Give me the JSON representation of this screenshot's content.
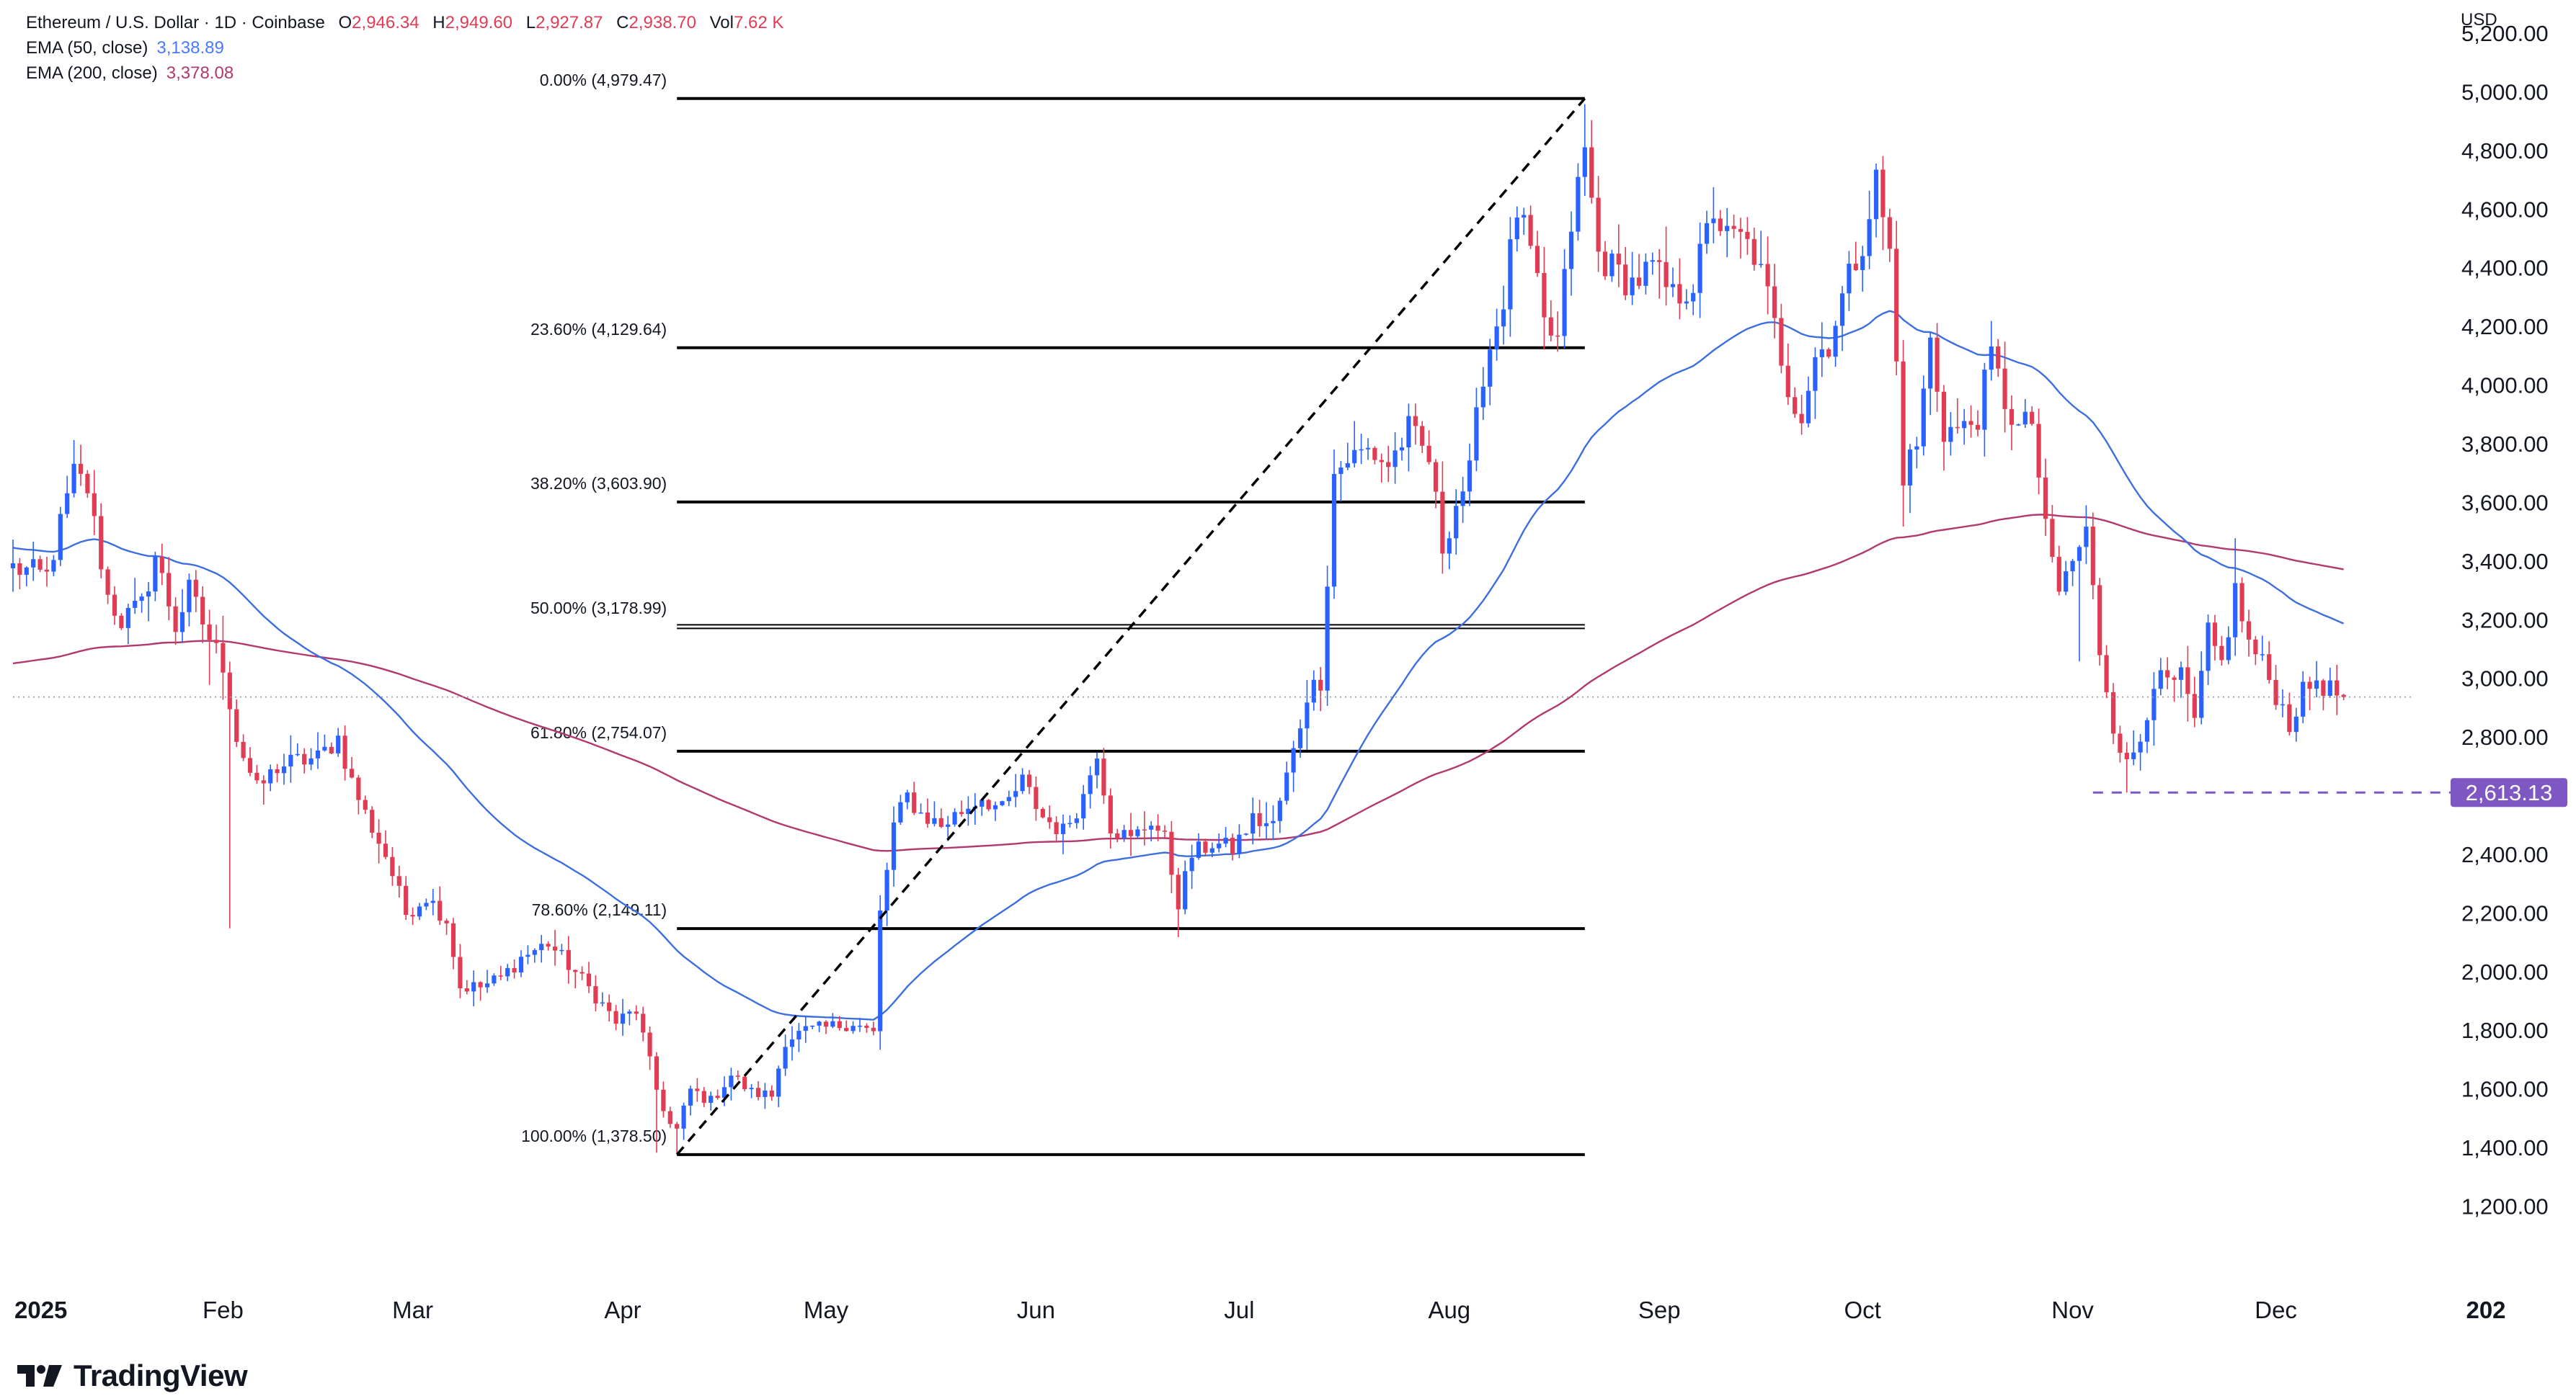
{
  "header": {
    "title": "Ethereum / U.S. Dollar · 1D · Coinbase",
    "ohlc": [
      {
        "label": "O",
        "value": "2,946.34"
      },
      {
        "label": "H",
        "value": "2,949.60"
      },
      {
        "label": "L",
        "value": "2,927.87"
      },
      {
        "label": "C",
        "value": "2,938.70"
      },
      {
        "label": "Vol",
        "value": "7.62 K"
      }
    ],
    "indicators": [
      {
        "label": "EMA (50, close)",
        "value": "3,138.89",
        "color": "#2962ff"
      },
      {
        "label": "EMA (200, close)",
        "value": "3,378.08",
        "color": "#b2396f"
      }
    ],
    "currency": "USD"
  },
  "brand": {
    "name": "TradingView",
    "icon": "tradingview-logo-icon"
  },
  "colors": {
    "up": "#2962ff",
    "down": "#e03c54",
    "ema50": "#3d6ee0",
    "ema200": "#b2396f",
    "fib": "#000000",
    "support": "#7e57c2"
  },
  "chart_data": {
    "type": "candlestick",
    "y_range": [
      1100,
      5300
    ],
    "y_ticks": [
      "1,200.00",
      "1,400.00",
      "1,600.00",
      "1,800.00",
      "2,000.00",
      "2,200.00",
      "2,400.00",
      "2,600.00",
      "2,800.00",
      "3,000.00",
      "3,200.00",
      "3,400.00",
      "3,600.00",
      "3,800.00",
      "4,000.00",
      "4,200.00",
      "4,400.00",
      "4,600.00",
      "4,800.00",
      "5,000.00",
      "5,200.00"
    ],
    "x_labels": [
      "2025",
      "Feb",
      "Mar",
      "Apr",
      "May",
      "Jun",
      "Jul",
      "Aug",
      "Sep",
      "Oct",
      "Nov",
      "Dec",
      "202"
    ],
    "fib_levels": [
      {
        "label": "0.00% (4,979.47)",
        "value": 4979.47
      },
      {
        "label": "23.60% (4,129.64)",
        "value": 4129.64
      },
      {
        "label": "38.20% (3,603.90)",
        "value": 3603.9
      },
      {
        "label": "50.00% (3,178.99)",
        "value": 3178.99
      },
      {
        "label": "61.80% (2,754.07)",
        "value": 2754.07
      },
      {
        "label": "78.60% (2,149.11)",
        "value": 2149.11
      },
      {
        "label": "100.00% (1,378.50)",
        "value": 1378.5
      }
    ],
    "fib_range": {
      "start_day": 98,
      "end_day": 232
    },
    "trend_line": {
      "from": {
        "day": 98,
        "price": 1378.5
      },
      "to": {
        "day": 232,
        "price": 4979.47
      }
    },
    "support_level": {
      "label": "2,613.13",
      "value": 2613.13,
      "start_day": 307
    },
    "last_price": 2938.7,
    "anchors": [
      [
        0,
        3380
      ],
      [
        5,
        3350
      ],
      [
        9,
        3700
      ],
      [
        11,
        3650
      ],
      [
        14,
        3280
      ],
      [
        16,
        3200
      ],
      [
        19,
        3250
      ],
      [
        21,
        3420
      ],
      [
        24,
        3180
      ],
      [
        26,
        3300
      ],
      [
        29,
        3140
      ],
      [
        31,
        3050
      ],
      [
        33,
        2800
      ],
      [
        36,
        2620
      ],
      [
        39,
        2700
      ],
      [
        42,
        2720
      ],
      [
        45,
        2730
      ],
      [
        48,
        2800
      ],
      [
        50,
        2650
      ],
      [
        52,
        2540
      ],
      [
        55,
        2400
      ],
      [
        58,
        2200
      ],
      [
        61,
        2260
      ],
      [
        64,
        2180
      ],
      [
        66,
        1950
      ],
      [
        69,
        1950
      ],
      [
        72,
        1980
      ],
      [
        75,
        2050
      ],
      [
        79,
        2100
      ],
      [
        83,
        2000
      ],
      [
        86,
        1920
      ],
      [
        89,
        1830
      ],
      [
        92,
        1870
      ],
      [
        95,
        1600
      ],
      [
        97,
        1480
      ],
      [
        98,
        1460
      ],
      [
        100,
        1600
      ],
      [
        103,
        1560
      ],
      [
        106,
        1650
      ],
      [
        109,
        1590
      ],
      [
        112,
        1580
      ],
      [
        114,
        1770
      ],
      [
        117,
        1800
      ],
      [
        120,
        1810
      ],
      [
        124,
        1830
      ],
      [
        127,
        1790
      ],
      [
        128,
        2200
      ],
      [
        130,
        2500
      ],
      [
        132,
        2600
      ],
      [
        134,
        2540
      ],
      [
        137,
        2500
      ],
      [
        140,
        2550
      ],
      [
        143,
        2600
      ],
      [
        146,
        2550
      ],
      [
        149,
        2650
      ],
      [
        152,
        2530
      ],
      [
        155,
        2480
      ],
      [
        158,
        2600
      ],
      [
        160,
        2760
      ],
      [
        162,
        2500
      ],
      [
        165,
        2450
      ],
      [
        168,
        2520
      ],
      [
        170,
        2450
      ],
      [
        172,
        2240
      ],
      [
        174,
        2400
      ],
      [
        177,
        2440
      ],
      [
        180,
        2420
      ],
      [
        183,
        2520
      ],
      [
        186,
        2500
      ],
      [
        189,
        2750
      ],
      [
        191,
        2950
      ],
      [
        193,
        3000
      ],
      [
        195,
        3700
      ],
      [
        197,
        3750
      ],
      [
        200,
        3780
      ],
      [
        203,
        3730
      ],
      [
        206,
        3850
      ],
      [
        209,
        3750
      ],
      [
        211,
        3450
      ],
      [
        213,
        3600
      ],
      [
        215,
        3700
      ],
      [
        217,
        4050
      ],
      [
        220,
        4300
      ],
      [
        222,
        4600
      ],
      [
        224,
        4450
      ],
      [
        226,
        4200
      ],
      [
        228,
        4150
      ],
      [
        230,
        4550
      ],
      [
        232,
        4800
      ],
      [
        234,
        4450
      ],
      [
        236,
        4400
      ],
      [
        239,
        4350
      ],
      [
        242,
        4400
      ],
      [
        245,
        4300
      ],
      [
        248,
        4350
      ],
      [
        251,
        4600
      ],
      [
        253,
        4500
      ],
      [
        255,
        4500
      ],
      [
        257,
        4450
      ],
      [
        259,
        4300
      ],
      [
        262,
        4000
      ],
      [
        264,
        3900
      ],
      [
        266,
        4100
      ],
      [
        268,
        4150
      ],
      [
        270,
        4300
      ],
      [
        273,
        4500
      ],
      [
        275,
        4700
      ],
      [
        277,
        4450
      ],
      [
        279,
        3700
      ],
      [
        281,
        3800
      ],
      [
        283,
        4150
      ],
      [
        285,
        3850
      ],
      [
        288,
        3850
      ],
      [
        290,
        3900
      ],
      [
        292,
        4100
      ],
      [
        294,
        3950
      ],
      [
        296,
        3850
      ],
      [
        298,
        3880
      ],
      [
        300,
        3500
      ],
      [
        302,
        3300
      ],
      [
        304,
        3400
      ],
      [
        306,
        3500
      ],
      [
        308,
        3100
      ],
      [
        310,
        2850
      ],
      [
        312,
        2700
      ],
      [
        314,
        2800
      ],
      [
        316,
        3000
      ],
      [
        318,
        2980
      ],
      [
        320,
        3000
      ],
      [
        322,
        2850
      ],
      [
        324,
        3150
      ],
      [
        326,
        3050
      ],
      [
        328,
        3300
      ],
      [
        330,
        3120
      ],
      [
        332,
        3050
      ],
      [
        334,
        2950
      ],
      [
        336,
        2850
      ],
      [
        338,
        2950
      ],
      [
        340,
        3000
      ],
      [
        342,
        2960
      ],
      [
        344,
        2938
      ]
    ]
  }
}
